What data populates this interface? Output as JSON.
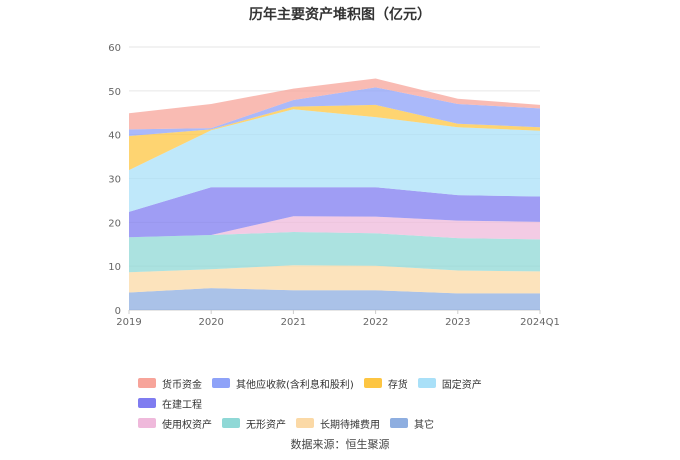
{
  "title": "历年主要资产堆积图（亿元）",
  "source": "数据来源：恒生聚源",
  "chart_data": {
    "type": "area",
    "stacked": true,
    "categories": [
      "2019",
      "2020",
      "2021",
      "2022",
      "2023",
      "2024Q1"
    ],
    "ylim": [
      0,
      60
    ],
    "yticks": [
      0,
      10,
      20,
      30,
      40,
      50,
      60
    ],
    "grid": true,
    "legend_position": "bottom",
    "series": [
      {
        "name": "其它",
        "color": "#8eaee0",
        "values": [
          4.0,
          5.0,
          4.5,
          4.5,
          3.8,
          3.8
        ]
      },
      {
        "name": "长期待摊费用",
        "color": "#fbd9a6",
        "values": [
          4.6,
          4.3,
          5.7,
          5.6,
          5.2,
          5.0
        ]
      },
      {
        "name": "无形资产",
        "color": "#8fd8d6",
        "values": [
          8.0,
          7.8,
          7.6,
          7.4,
          7.4,
          7.3
        ]
      },
      {
        "name": "使用权资产",
        "color": "#efb9db",
        "values": [
          0.0,
          0.0,
          3.6,
          3.8,
          4.0,
          4.0
        ]
      },
      {
        "name": "在建工程",
        "color": "#7f7cf0",
        "values": [
          5.8,
          10.9,
          6.6,
          6.7,
          5.8,
          5.8
        ]
      },
      {
        "name": "固定资产",
        "color": "#a9e0f8",
        "values": [
          9.5,
          13.0,
          17.8,
          16.0,
          15.5,
          15.0
        ]
      },
      {
        "name": "存货",
        "color": "#fdc542",
        "values": [
          7.8,
          0.2,
          0.6,
          2.8,
          0.8,
          0.8
        ]
      },
      {
        "name": "其他应收款(含利息和股利)",
        "color": "#8ea2f8",
        "values": [
          1.5,
          0.3,
          1.5,
          4.0,
          4.5,
          4.3
        ]
      },
      {
        "name": "货币资金",
        "color": "#f7a49a",
        "values": [
          3.7,
          5.5,
          2.6,
          2.0,
          1.2,
          0.8
        ]
      }
    ]
  },
  "legend_rows": [
    [
      "货币资金",
      "其他应收款(含利息和股利)",
      "存货",
      "固定资产",
      "在建工程"
    ],
    [
      "使用权资产",
      "无形资产",
      "长期待摊费用",
      "其它"
    ]
  ]
}
